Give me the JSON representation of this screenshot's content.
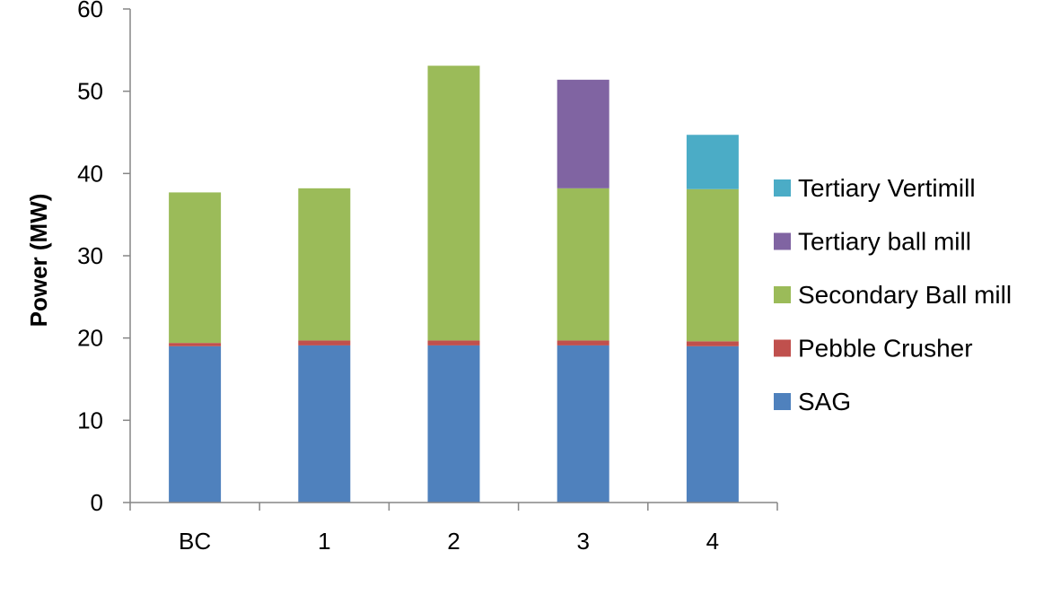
{
  "chart_data": {
    "type": "bar",
    "stacked": true,
    "title": "",
    "xlabel": "",
    "ylabel": "Power (MW)",
    "ylim": [
      0,
      60
    ],
    "yticks": [
      0,
      10,
      20,
      30,
      40,
      50,
      60
    ],
    "categories": [
      "BC",
      "1",
      "2",
      "3",
      "4"
    ],
    "legend_position": "right",
    "series": [
      {
        "name": "SAG",
        "color": "#4F81BD",
        "values": [
          19.0,
          19.1,
          19.1,
          19.1,
          19.0
        ]
      },
      {
        "name": "Pebble Crusher",
        "color": "#C0504D",
        "values": [
          0.4,
          0.6,
          0.6,
          0.6,
          0.6
        ]
      },
      {
        "name": "Secondary Ball mill",
        "color": "#9BBB59",
        "values": [
          18.3,
          18.5,
          33.4,
          18.5,
          18.5
        ]
      },
      {
        "name": "Tertiary ball mill",
        "color": "#8064A2",
        "values": [
          0,
          0,
          0,
          13.2,
          0
        ]
      },
      {
        "name": "Tertiary Vertimill",
        "color": "#4BACC6",
        "values": [
          0,
          0,
          0,
          0,
          6.6
        ]
      }
    ]
  }
}
